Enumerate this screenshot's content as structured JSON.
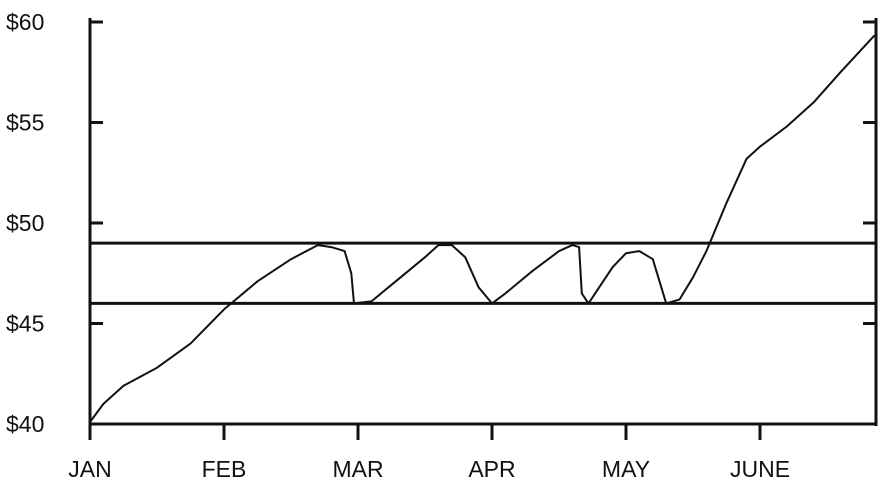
{
  "chart_data": {
    "type": "line",
    "title": "",
    "xlabel": "",
    "ylabel": "",
    "x_ticks": [
      "JAN",
      "FEB",
      "MAR",
      "APR",
      "MAY",
      "JUNE"
    ],
    "y_ticks": [
      "$40",
      "$45",
      "$50",
      "$55",
      "$60"
    ],
    "ylim": [
      40,
      60
    ],
    "xlim": [
      0,
      5.85
    ],
    "grid": false,
    "legend": "none",
    "resistance_level": 49,
    "support_level": 46,
    "series": [
      {
        "x": [
          0,
          0.1,
          0.25,
          0.5,
          0.75,
          1.0,
          1.25,
          1.5,
          1.7,
          1.8,
          1.9,
          1.95,
          1.97,
          2.1,
          2.3,
          2.5,
          2.6,
          2.7,
          2.8,
          2.9,
          3.0,
          3.1,
          3.3,
          3.5,
          3.6,
          3.65,
          3.67,
          3.72,
          3.8,
          3.9,
          4.0,
          4.1,
          4.2,
          4.3,
          4.4,
          4.5,
          4.6,
          4.75,
          4.9,
          5.0,
          5.2,
          5.4,
          5.6,
          5.85
        ],
        "y": [
          40.1,
          41,
          41.9,
          42.8,
          44,
          45.7,
          47.1,
          48.2,
          48.9,
          48.8,
          48.6,
          47.5,
          46,
          46.1,
          47.2,
          48.3,
          48.9,
          48.9,
          48.3,
          46.8,
          46.0,
          46.5,
          47.6,
          48.6,
          48.9,
          48.8,
          46.5,
          46.0,
          46.8,
          47.8,
          48.5,
          48.6,
          48.2,
          46.0,
          46.2,
          47.3,
          48.6,
          51.0,
          53.2,
          53.8,
          54.8,
          56.0,
          57.5,
          59.3
        ]
      }
    ]
  }
}
